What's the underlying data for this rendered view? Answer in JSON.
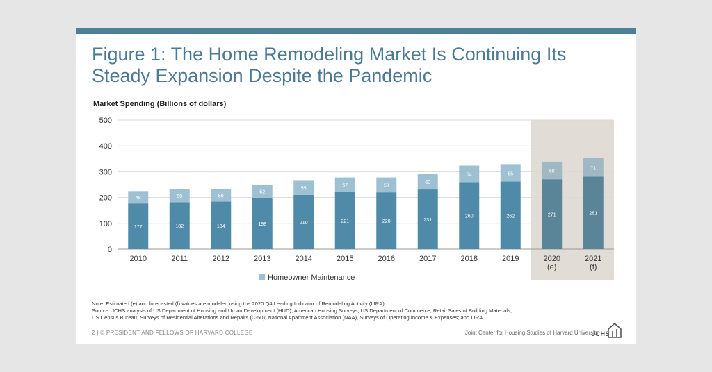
{
  "slide": {
    "title_line1": "Figure 1: The Home Remodeling Market Is Continuing Its",
    "title_line2": "Steady Expansion Despite the Pandemic",
    "notes": [
      "Note: Estimated (e) and forecasted (f) values are modeled using the 2020:Q4 Leading Indicator of Remodeling Activity (LIRA).",
      "Source: JCHS analysis of US Department of Housing and Urban Development (HUD), American Housing Surveys; US Department of Commerce, Retail Sales of Building Materials;",
      "US Census Bureau, Surveys of Residential Alterations and Repairs (C-50); National Apartment Association (NAA), Surveys of Operating Income & Expenses; and LIRA."
    ],
    "footer_left": "2 | © PRESIDENT AND FELLOWS OF HARVARD COLLEGE",
    "footer_right": "Joint Center for Housing Studies of Harvard University",
    "logo_text": "JCHS",
    "colors": {
      "accent_bar": "#4d7f9a",
      "title": "#4b7a94",
      "improvement": "#4f8aa8",
      "maintenance": "#9dc1d3",
      "forecast_improvement": "#5a8598",
      "forecast_maintenance": "#9fb8c4",
      "forecast_shade": "#e2dcd6"
    }
  },
  "chart_data": {
    "type": "bar",
    "stacked": true,
    "ylabel": "Market Spending (Billions of dollars)",
    "ylim": [
      0,
      500
    ],
    "yticks": [
      0,
      100,
      200,
      300,
      400,
      500
    ],
    "grid": true,
    "categories": [
      "2010",
      "2011",
      "2012",
      "2013",
      "2014",
      "2015",
      "2016",
      "2017",
      "2018",
      "2019",
      "2020\n(e)",
      "2021\n(f)"
    ],
    "shaded_categories": [
      "2020\n(e)",
      "2021\n(f)"
    ],
    "series": [
      {
        "values": [
          177,
          182,
          184,
          198,
          210,
          221,
          220,
          231,
          260,
          262,
          271,
          281
        ]
      },
      {
        "name": "Homeowner Maintenance",
        "values": [
          48,
          50,
          50,
          52,
          55,
          57,
          58,
          60,
          64,
          65,
          68,
          71
        ]
      }
    ],
    "legend_position": "bottom"
  }
}
